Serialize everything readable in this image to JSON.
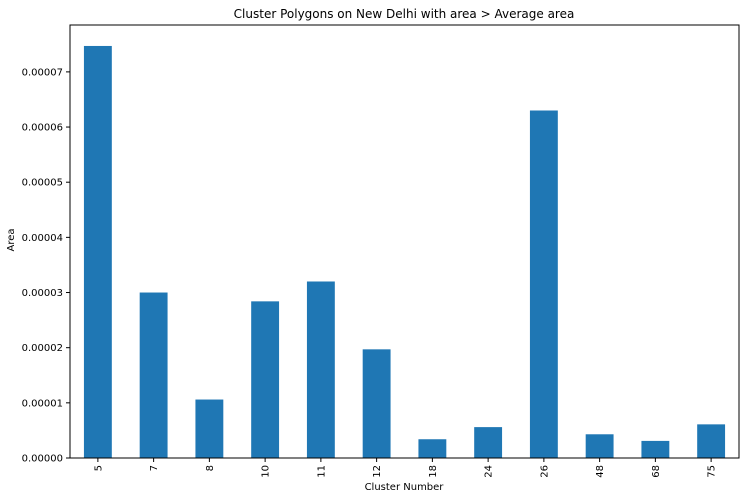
{
  "chart_data": {
    "type": "bar",
    "title": "Cluster Polygons on New Delhi with area > Average area",
    "xlabel": "Cluster Number",
    "ylabel": "Area",
    "categories": [
      "5",
      "7",
      "8",
      "10",
      "11",
      "12",
      "18",
      "24",
      "26",
      "48",
      "68",
      "75"
    ],
    "values": [
      7.47e-05,
      3e-05,
      1.06e-05,
      2.84e-05,
      3.2e-05,
      1.97e-05,
      3.4e-06,
      5.6e-06,
      6.3e-05,
      4.3e-06,
      3.1e-06,
      6.1e-06
    ],
    "ylim": [
      0,
      7.85e-05
    ],
    "yticks": [
      "0.00000",
      "0.00001",
      "0.00002",
      "0.00003",
      "0.00004",
      "0.00005",
      "0.00006",
      "0.00007"
    ],
    "ytick_values": [
      0,
      1e-05,
      2e-05,
      3e-05,
      4e-05,
      5e-05,
      6e-05,
      7e-05
    ],
    "bar_color": "#1f77b4",
    "grid": false,
    "legend": "none"
  }
}
